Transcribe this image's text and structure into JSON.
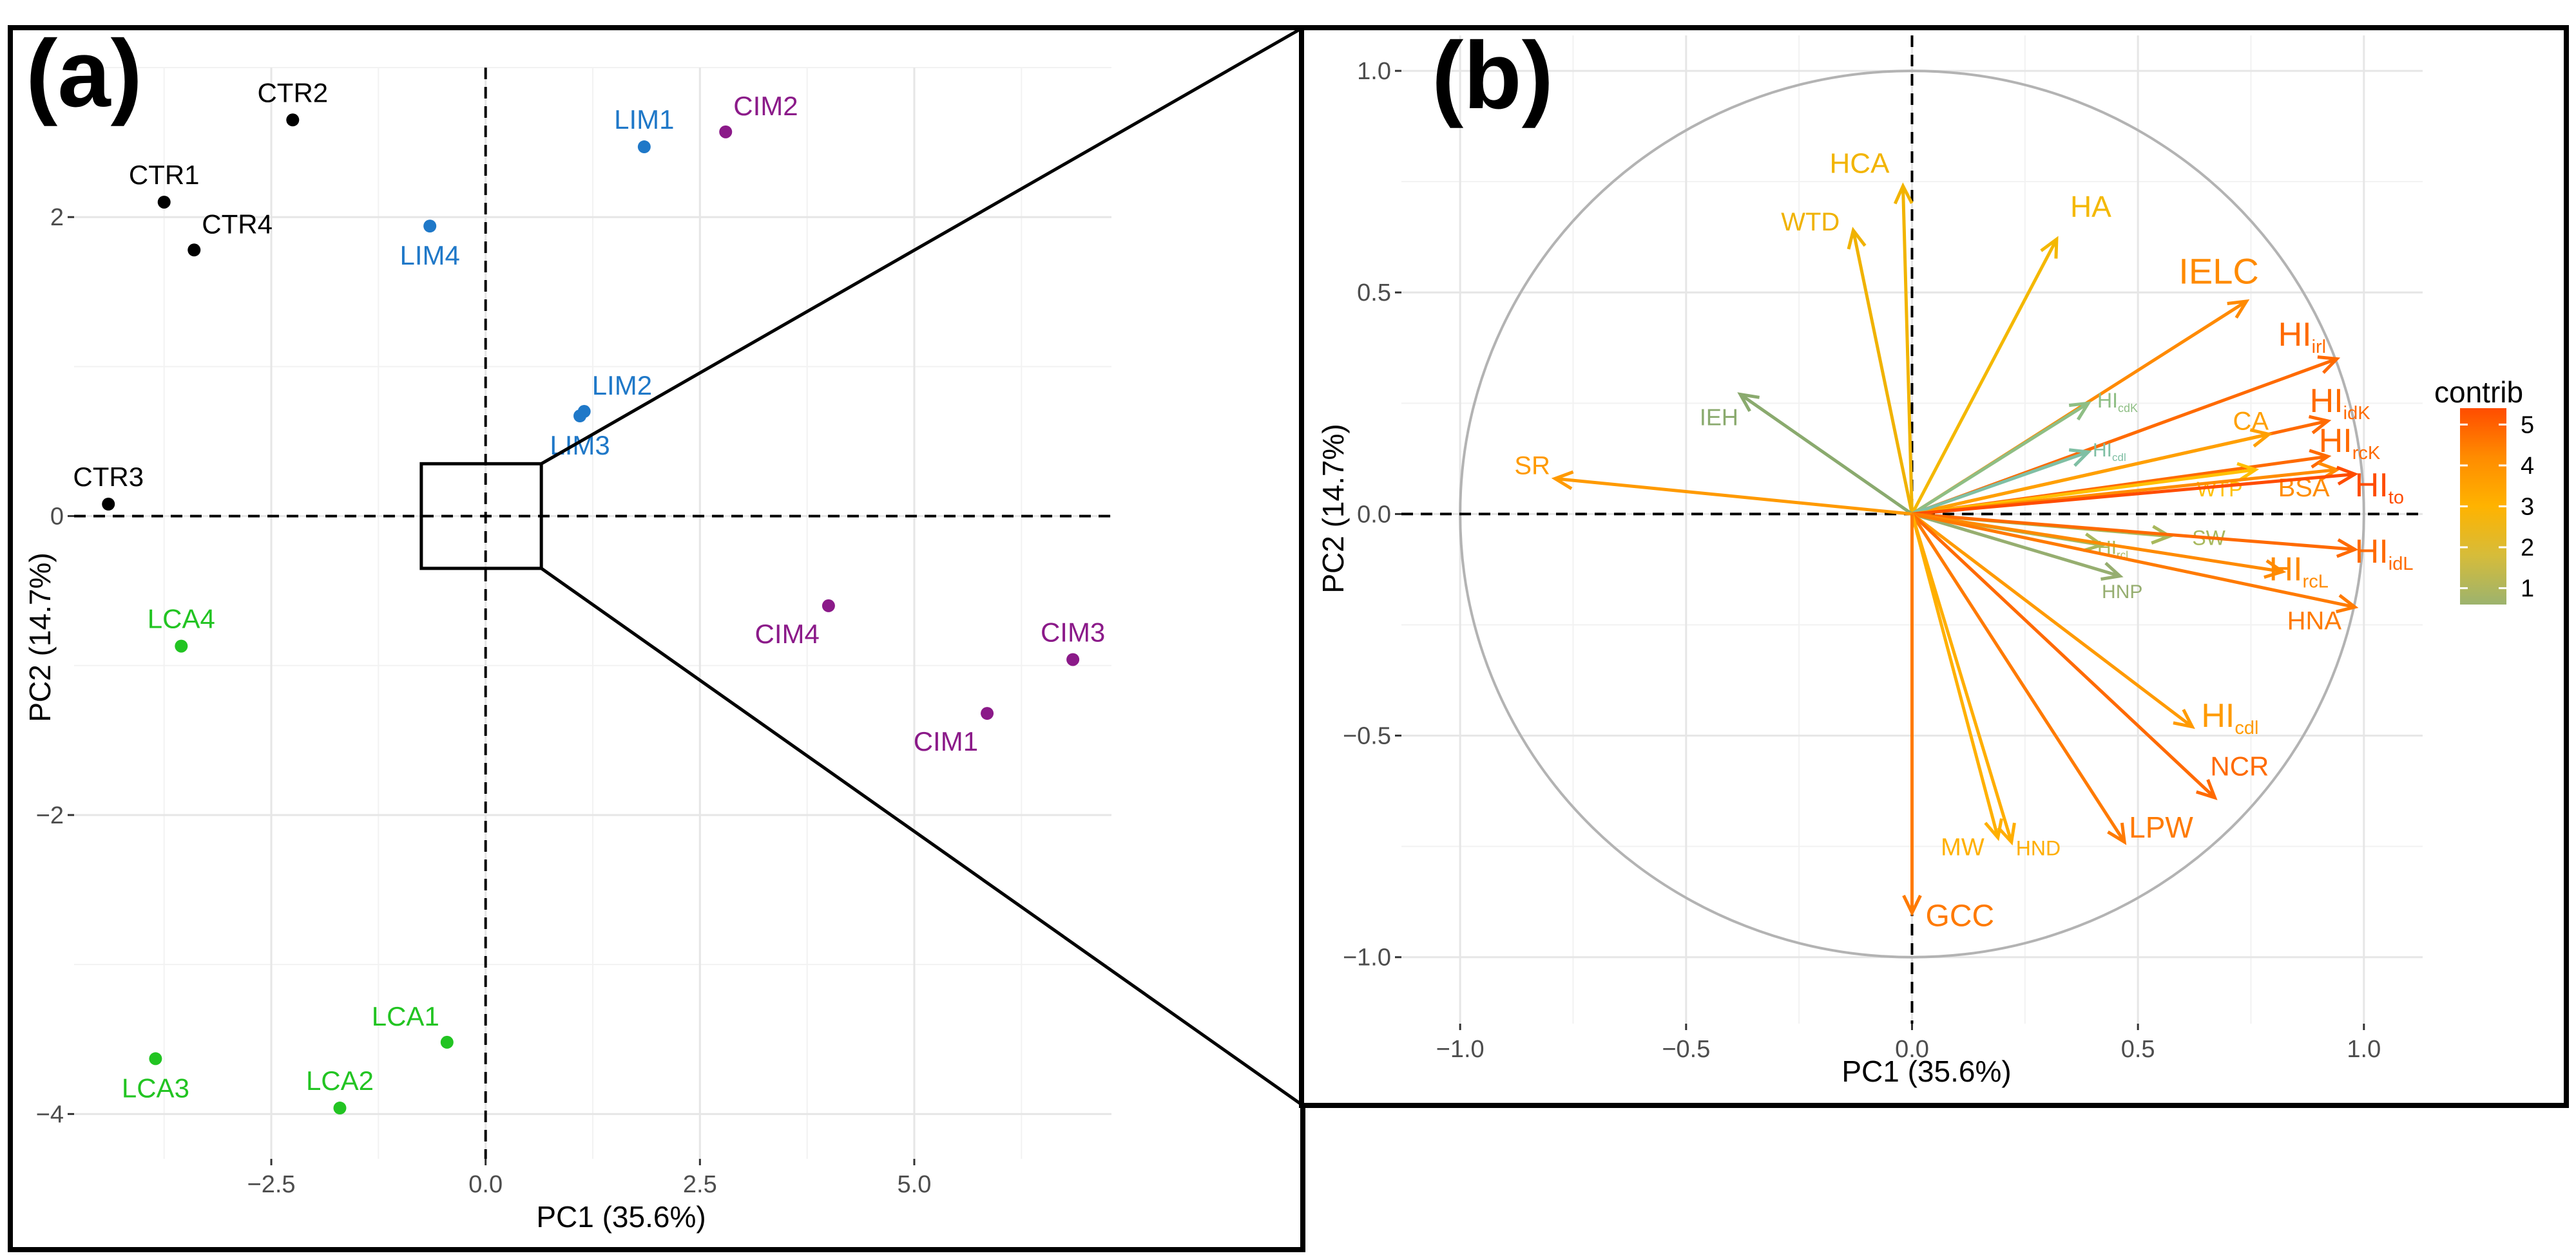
{
  "chart_data": [
    {
      "panel_label": "(a)",
      "type": "scatter",
      "xlabel": "PC1 (35.6%)",
      "ylabel": "PC2 (14.7%)",
      "xlim": [
        -4.8,
        7.3
      ],
      "ylim": [
        -4.3,
        3.0
      ],
      "xticks": [
        -2.5,
        0.0,
        2.5,
        5.0
      ],
      "xtick_labels": [
        "−2.5",
        "0.0",
        "2.5",
        "5.0"
      ],
      "yticks": [
        -4,
        -2,
        0,
        2
      ],
      "ytick_labels": [
        "−4",
        "−2",
        "0",
        "2"
      ],
      "grid": true,
      "reference_lines": {
        "x": 0,
        "y": 0,
        "style": "dashed"
      },
      "zoom_box": {
        "x": [
          -0.75,
          0.65
        ],
        "y": [
          -0.35,
          0.35
        ]
      },
      "groups": [
        {
          "name": "CTR",
          "color": "#000000",
          "points": [
            {
              "label": "CTR1",
              "x": -3.75,
              "y": 2.1,
              "label_pos": "above"
            },
            {
              "label": "CTR2",
              "x": -2.25,
              "y": 2.65,
              "label_pos": "above"
            },
            {
              "label": "CTR3",
              "x": -4.4,
              "y": 0.08,
              "label_pos": "above"
            },
            {
              "label": "CTR4",
              "x": -3.4,
              "y": 1.78,
              "label_pos": "upper-right"
            }
          ]
        },
        {
          "name": "LIM",
          "color": "#1f78c8",
          "points": [
            {
              "label": "LIM1",
              "x": 1.85,
              "y": 2.47,
              "label_pos": "above"
            },
            {
              "label": "LIM2",
              "x": 1.15,
              "y": 0.7,
              "label_pos": "upper-right"
            },
            {
              "label": "LIM3",
              "x": 1.1,
              "y": 0.67,
              "label_pos": "below"
            },
            {
              "label": "LIM4",
              "x": -0.65,
              "y": 1.94,
              "label_pos": "below"
            }
          ]
        },
        {
          "name": "CIM",
          "color": "#8b1a89",
          "points": [
            {
              "label": "CIM1",
              "x": 5.85,
              "y": -1.32,
              "label_pos": "below-left"
            },
            {
              "label": "CIM2",
              "x": 2.8,
              "y": 2.57,
              "label_pos": "upper-right"
            },
            {
              "label": "CIM3",
              "x": 6.85,
              "y": -0.96,
              "label_pos": "above"
            },
            {
              "label": "CIM4",
              "x": 4.0,
              "y": -0.6,
              "label_pos": "below-left"
            }
          ]
        },
        {
          "name": "LCA",
          "color": "#22c422",
          "points": [
            {
              "label": "LCA1",
              "x": -0.45,
              "y": -3.52,
              "label_pos": "upper-left"
            },
            {
              "label": "LCA2",
              "x": -1.7,
              "y": -3.96,
              "label_pos": "above"
            },
            {
              "label": "LCA3",
              "x": -3.85,
              "y": -3.63,
              "label_pos": "below"
            },
            {
              "label": "LCA4",
              "x": -3.55,
              "y": -0.87,
              "label_pos": "above"
            }
          ]
        }
      ]
    },
    {
      "panel_label": "(b)",
      "type": "biplot",
      "xlabel": "PC1 (35.6%)",
      "ylabel": "PC2 (14.7%)",
      "xlim": [
        -1.13,
        1.13
      ],
      "ylim": [
        -1.15,
        1.08
      ],
      "xticks": [
        -1.0,
        -0.5,
        0.0,
        0.5,
        1.0
      ],
      "xtick_labels": [
        "−1.0",
        "−0.5",
        "0.0",
        "0.5",
        "1.0"
      ],
      "yticks": [
        -1.0,
        -0.5,
        0.0,
        0.5,
        1.0
      ],
      "ytick_labels": [
        "−1.0",
        "−0.5",
        "0.0",
        "0.5",
        "1.0"
      ],
      "grid": true,
      "unit_circle": true,
      "reference_lines": {
        "x": 0,
        "y": 0,
        "style": "dashed"
      },
      "legend": {
        "title": "contrib",
        "position": "right",
        "ticks": [
          "5",
          "4",
          "3",
          "2",
          "1"
        ],
        "tick_values": [
          5,
          4,
          3,
          2,
          1
        ],
        "range": [
          0.6,
          5.4
        ],
        "colors": {
          "low": "#9cb36e",
          "mid_low": "#d6bc3a",
          "mid": "#ffb300",
          "mid_high": "#ff8c00",
          "high": "#ff4c00"
        }
      },
      "vectors": [
        {
          "name": "HCA",
          "main": "HCA",
          "sub": "",
          "x": -0.02,
          "y": 0.74,
          "color": "#f2b400",
          "lx": -0.05,
          "ly": 0.77,
          "anchor": "end",
          "size": 44
        },
        {
          "name": "WTD",
          "main": "WTD",
          "sub": "",
          "x": -0.13,
          "y": 0.64,
          "color": "#f0b200",
          "lx": -0.16,
          "ly": 0.64,
          "anchor": "end",
          "size": 40
        },
        {
          "name": "HA",
          "main": "HA",
          "sub": "",
          "x": 0.32,
          "y": 0.62,
          "color": "#f4b800",
          "lx": 0.35,
          "ly": 0.67,
          "anchor": "start",
          "size": 46
        },
        {
          "name": "IELC",
          "main": "IELC",
          "sub": "",
          "x": 0.74,
          "y": 0.48,
          "color": "#ff8a00",
          "lx": 0.59,
          "ly": 0.52,
          "anchor": "start",
          "size": 56
        },
        {
          "name": "HIirl",
          "main": "HI",
          "sub": "irl",
          "x": 0.94,
          "y": 0.35,
          "color": "#ff6a00",
          "lx": 0.81,
          "ly": 0.38,
          "anchor": "start",
          "size": 52
        },
        {
          "name": "HIcdK",
          "main": "HI",
          "sub": "cdK",
          "x": 0.39,
          "y": 0.25,
          "color": "#8ebe84",
          "lx": 0.41,
          "ly": 0.24,
          "anchor": "start",
          "size": 32
        },
        {
          "name": "IEH",
          "main": "IEH",
          "sub": "",
          "x": -0.38,
          "y": 0.27,
          "color": "#8aaa6e",
          "lx": -0.47,
          "ly": 0.2,
          "anchor": "start",
          "size": 36
        },
        {
          "name": "HIidK",
          "main": "HI",
          "sub": "idK",
          "x": 0.92,
          "y": 0.21,
          "color": "#ff6a00",
          "lx": 0.88,
          "ly": 0.23,
          "anchor": "start",
          "size": 52
        },
        {
          "name": "CA",
          "main": "CA",
          "sub": "",
          "x": 0.79,
          "y": 0.18,
          "color": "#ffa000",
          "lx": 0.71,
          "ly": 0.19,
          "anchor": "start",
          "size": 40
        },
        {
          "name": "HIcdl",
          "main": "HI",
          "sub": "cdl",
          "x": 0.39,
          "y": 0.14,
          "color": "#7fbfa4",
          "lx": 0.4,
          "ly": 0.13,
          "anchor": "start",
          "size": 30
        },
        {
          "name": "HIrcK",
          "main": "HI",
          "sub": "rcK",
          "x": 0.92,
          "y": 0.13,
          "color": "#ff6a00",
          "lx": 0.9,
          "ly": 0.14,
          "anchor": "start",
          "size": 52
        },
        {
          "name": "WTP",
          "main": "WTP",
          "sub": "",
          "x": 0.76,
          "y": 0.1,
          "color": "#ffc000",
          "lx": 0.63,
          "ly": 0.04,
          "anchor": "start",
          "size": 32
        },
        {
          "name": "BSA",
          "main": "BSA",
          "sub": "",
          "x": 0.94,
          "y": 0.1,
          "color": "#ff8c00",
          "lx": 0.81,
          "ly": 0.04,
          "anchor": "start",
          "size": 40
        },
        {
          "name": "HIto",
          "main": "HI",
          "sub": "to",
          "x": 0.98,
          "y": 0.09,
          "color": "#ff4c00",
          "lx": 0.98,
          "ly": 0.04,
          "anchor": "start",
          "size": 52
        },
        {
          "name": "SR",
          "main": "SR",
          "sub": "",
          "x": -0.79,
          "y": 0.08,
          "color": "#ff9a00",
          "lx": -0.88,
          "ly": 0.09,
          "anchor": "start",
          "size": 40
        },
        {
          "name": "SW",
          "main": "SW",
          "sub": "",
          "x": 0.57,
          "y": -0.05,
          "color": "#a8b85c",
          "lx": 0.62,
          "ly": -0.07,
          "anchor": "start",
          "size": 32
        },
        {
          "name": "HIrcl",
          "main": "HI",
          "sub": "rcl",
          "x": 0.42,
          "y": -0.07,
          "color": "#a8b85c",
          "lx": 0.41,
          "ly": -0.09,
          "anchor": "start",
          "size": 30
        },
        {
          "name": "HIidL",
          "main": "HI",
          "sub": "idL",
          "x": 0.98,
          "y": -0.08,
          "color": "#ff6a00",
          "lx": 0.98,
          "ly": -0.11,
          "anchor": "start",
          "size": 52
        },
        {
          "name": "HIrcL",
          "main": "HI",
          "sub": "rcL",
          "x": 0.82,
          "y": -0.13,
          "color": "#ff8a00",
          "lx": 0.79,
          "ly": -0.15,
          "anchor": "start",
          "size": 52
        },
        {
          "name": "HNP",
          "main": "HNP",
          "sub": "",
          "x": 0.46,
          "y": -0.14,
          "color": "#96ae70",
          "lx": 0.42,
          "ly": -0.19,
          "anchor": "start",
          "size": 30
        },
        {
          "name": "HNA",
          "main": "HNA",
          "sub": "",
          "x": 0.98,
          "y": -0.21,
          "color": "#ff7a00",
          "lx": 0.83,
          "ly": -0.26,
          "anchor": "start",
          "size": 40
        },
        {
          "name": "HIcdI",
          "main": "HI",
          "sub": "cdl",
          "x": 0.62,
          "y": -0.48,
          "color": "#ff9a00",
          "lx": 0.64,
          "ly": -0.48,
          "anchor": "start",
          "size": 52
        },
        {
          "name": "NCR",
          "main": "NCR",
          "sub": "",
          "x": 0.67,
          "y": -0.64,
          "color": "#ff6a00",
          "lx": 0.66,
          "ly": -0.59,
          "anchor": "start",
          "size": 42
        },
        {
          "name": "LPW",
          "main": "LPW",
          "sub": "",
          "x": 0.47,
          "y": -0.74,
          "color": "#ff7a00",
          "lx": 0.48,
          "ly": -0.73,
          "anchor": "start",
          "size": 46
        },
        {
          "name": "MW",
          "main": "MW",
          "sub": "",
          "x": 0.19,
          "y": -0.73,
          "color": "#ffb000",
          "lx": 0.16,
          "ly": -0.77,
          "anchor": "end",
          "size": 38
        },
        {
          "name": "HND",
          "main": "HND",
          "sub": "",
          "x": 0.22,
          "y": -0.74,
          "color": "#ffae00",
          "lx": 0.23,
          "ly": -0.77,
          "anchor": "start",
          "size": 32
        },
        {
          "name": "GCC",
          "main": "GCC",
          "sub": "",
          "x": 0.0,
          "y": -0.9,
          "color": "#ff7a00",
          "lx": 0.03,
          "ly": -0.93,
          "anchor": "start",
          "size": 48
        }
      ]
    }
  ]
}
